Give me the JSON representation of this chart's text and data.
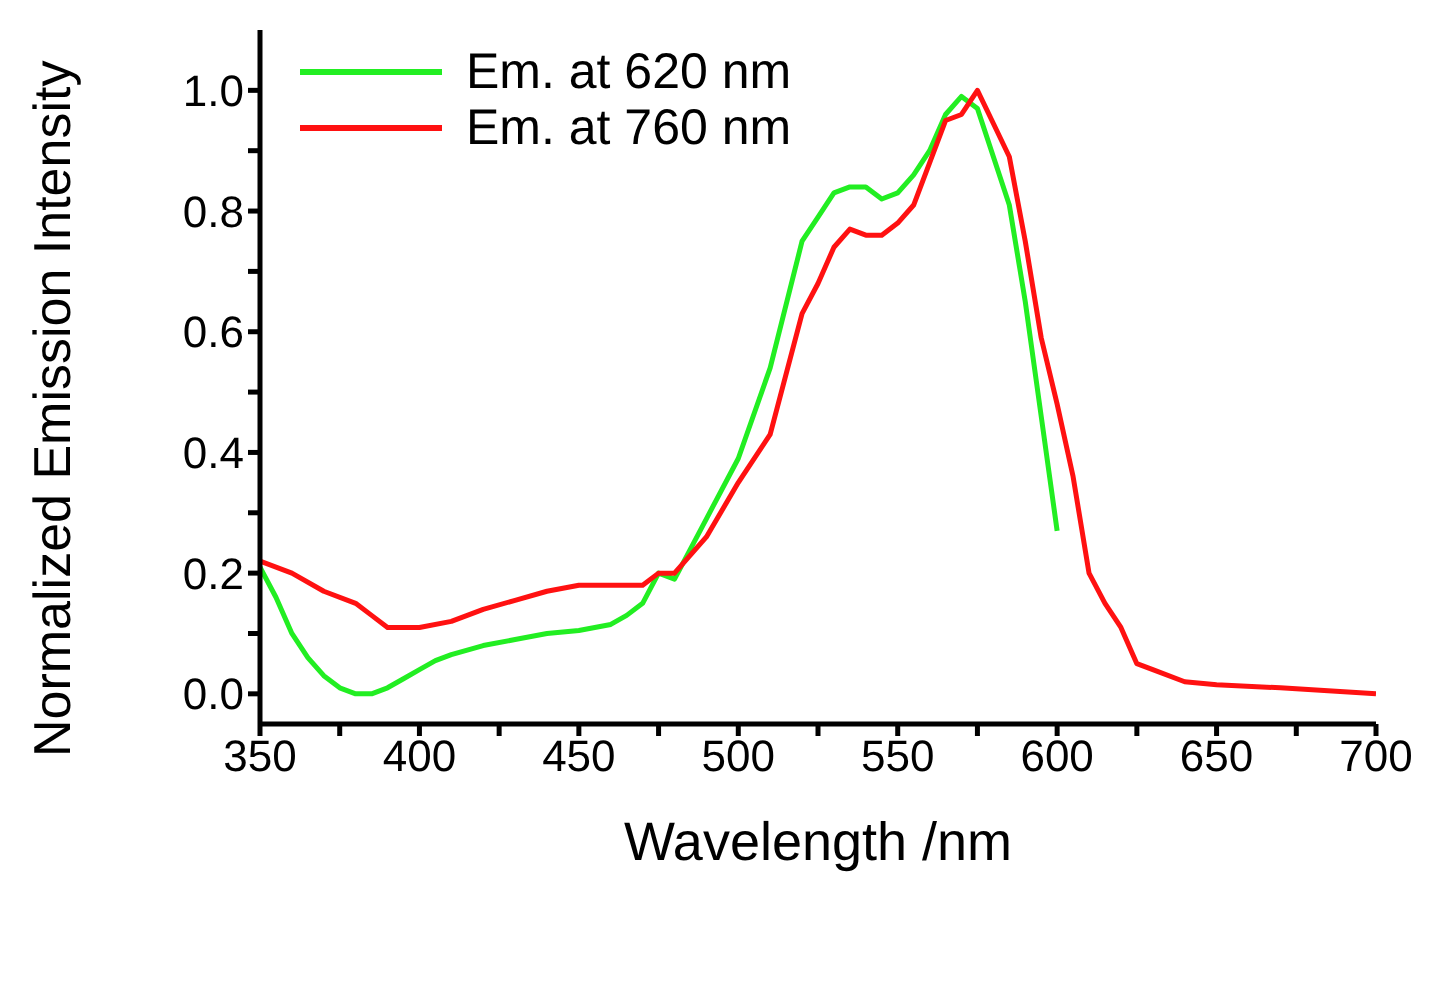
{
  "chart_data": {
    "type": "line",
    "xlabel": "Wavelength /nm",
    "ylabel": "Normalized Emission Intensity",
    "xlim": [
      350,
      700
    ],
    "ylim": [
      -0.05,
      1.1
    ],
    "xticks": [
      350,
      {
        "value": 375,
        "label": null
      },
      400,
      {
        "value": 425,
        "label": null
      },
      450,
      {
        "value": 475,
        "label": null
      },
      500,
      {
        "value": 525,
        "label": null
      },
      550,
      {
        "value": 575,
        "label": null
      },
      600,
      {
        "value": 625,
        "label": null
      },
      650,
      {
        "value": 675,
        "label": null
      },
      700
    ],
    "yticks": [
      {
        "value": 0,
        "label": "0.0"
      },
      {
        "value": 0.1,
        "label": null
      },
      {
        "value": 0.2,
        "label": "0.2"
      },
      {
        "value": 0.3,
        "label": null
      },
      {
        "value": 0.4,
        "label": "0.4"
      },
      {
        "value": 0.5,
        "label": null
      },
      {
        "value": 0.6,
        "label": "0.6"
      },
      {
        "value": 0.7,
        "label": null
      },
      {
        "value": 0.8,
        "label": "0.8"
      },
      {
        "value": 0.9,
        "label": null
      },
      {
        "value": 1.0,
        "label": "1.0"
      }
    ],
    "grid": false,
    "legend": "top left",
    "line_style": "solid",
    "series": [
      {
        "name": "Em. at 620 nm",
        "color": "#22ee22",
        "x": [
          350,
          355,
          360,
          365,
          370,
          375,
          380,
          385,
          390,
          395,
          400,
          405,
          410,
          420,
          430,
          440,
          450,
          460,
          465,
          470,
          475,
          480,
          490,
          500,
          510,
          520,
          525,
          530,
          535,
          540,
          545,
          550,
          555,
          560,
          565,
          570,
          575,
          580,
          585,
          590,
          595,
          600
        ],
        "values": [
          0.21,
          0.16,
          0.1,
          0.06,
          0.03,
          0.01,
          0.0,
          0.0,
          0.01,
          0.025,
          0.04,
          0.055,
          0.065,
          0.08,
          0.09,
          0.1,
          0.105,
          0.115,
          0.13,
          0.15,
          0.2,
          0.19,
          0.29,
          0.39,
          0.54,
          0.75,
          0.79,
          0.83,
          0.84,
          0.84,
          0.82,
          0.83,
          0.86,
          0.9,
          0.96,
          0.99,
          0.97,
          0.89,
          0.81,
          0.65,
          0.46,
          0.27
        ]
      },
      {
        "name": "Em. at 760 nm",
        "color": "#ff1111",
        "x": [
          350,
          360,
          370,
          380,
          385,
          390,
          400,
          410,
          420,
          430,
          440,
          450,
          460,
          470,
          475,
          480,
          490,
          500,
          510,
          520,
          525,
          530,
          535,
          540,
          545,
          550,
          555,
          560,
          565,
          570,
          575,
          580,
          585,
          590,
          595,
          600,
          605,
          610,
          615,
          620,
          625,
          630,
          640,
          650,
          670,
          700
        ],
        "values": [
          0.22,
          0.2,
          0.17,
          0.15,
          0.13,
          0.11,
          0.11,
          0.12,
          0.14,
          0.155,
          0.17,
          0.18,
          0.18,
          0.18,
          0.2,
          0.2,
          0.26,
          0.35,
          0.43,
          0.63,
          0.68,
          0.74,
          0.77,
          0.76,
          0.76,
          0.78,
          0.81,
          0.88,
          0.95,
          0.96,
          1.0,
          0.945,
          0.89,
          0.75,
          0.59,
          0.48,
          0.36,
          0.2,
          0.15,
          0.11,
          0.05,
          0.04,
          0.02,
          0.015,
          0.01,
          0.0
        ]
      }
    ]
  }
}
